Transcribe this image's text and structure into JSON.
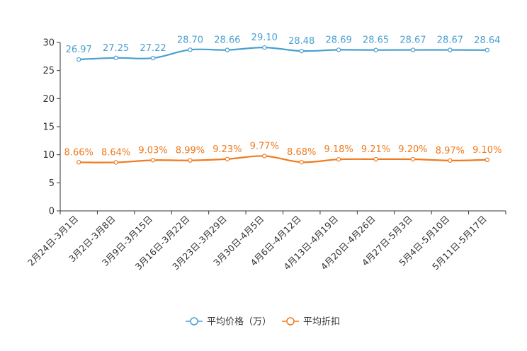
{
  "chart_data": {
    "type": "line",
    "title": "",
    "xlabel": "",
    "ylabel": "",
    "ylim": [
      0,
      30
    ],
    "yticks": [
      0,
      5,
      10,
      15,
      20,
      25,
      30
    ],
    "grid": false,
    "legend_position": "bottom-center",
    "categories": [
      "2月24日-3月1日",
      "3月2日-3月8日",
      "3月9日-3月15日",
      "3月16日-3月22日",
      "3月23日-3月29日",
      "3月30日-4月5日",
      "4月6日-4月12日",
      "4月13日-4月19日",
      "4月20日-4月26日",
      "4月27日-5月3日",
      "5月4日-5月10日",
      "5月11日-5月17日"
    ],
    "series": [
      {
        "name": "平均价格（万）",
        "color": "#4a9fd0",
        "values": [
          26.97,
          27.25,
          27.22,
          28.7,
          28.66,
          29.1,
          28.48,
          28.69,
          28.65,
          28.67,
          28.67,
          28.64
        ],
        "labels": [
          "26.97",
          "27.25",
          "27.22",
          "28.70",
          "28.66",
          "29.10",
          "28.48",
          "28.69",
          "28.65",
          "28.67",
          "28.67",
          "28.64"
        ]
      },
      {
        "name": "平均折扣",
        "color": "#f07a1e",
        "values": [
          8.66,
          8.64,
          9.03,
          8.99,
          9.23,
          9.77,
          8.68,
          9.18,
          9.21,
          9.2,
          8.97,
          9.1
        ],
        "labels": [
          "8.66%",
          "8.64%",
          "9.03%",
          "8.99%",
          "9.23%",
          "9.77%",
          "8.68%",
          "9.18%",
          "9.21%",
          "9.20%",
          "8.97%",
          "9.10%"
        ]
      }
    ]
  }
}
